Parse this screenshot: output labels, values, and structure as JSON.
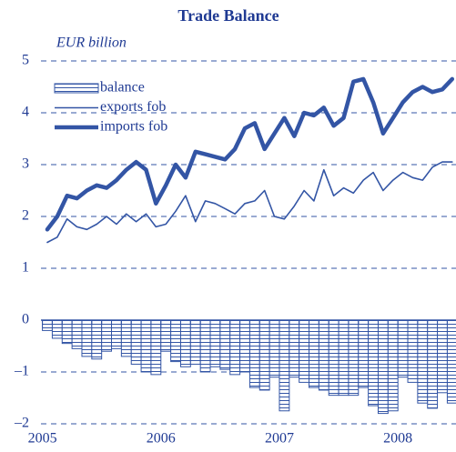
{
  "chart_data": {
    "type": "bar_line",
    "title": "Trade Balance",
    "y_label": "EUR billion",
    "categories": [
      "2005",
      null,
      null,
      null,
      null,
      null,
      null,
      null,
      null,
      null,
      null,
      null,
      "2006",
      null,
      null,
      null,
      null,
      null,
      null,
      null,
      null,
      null,
      null,
      null,
      "2007",
      null,
      null,
      null,
      null,
      null,
      null,
      null,
      null,
      null,
      null,
      null,
      "2008",
      null,
      null,
      null,
      null,
      null
    ],
    "series": [
      {
        "name": "balance",
        "type": "bar",
        "color": "#3355a5",
        "values": [
          -0.2,
          -0.35,
          -0.45,
          -0.55,
          -0.7,
          -0.75,
          -0.6,
          -0.55,
          -0.7,
          -0.85,
          -1.0,
          -1.05,
          -0.6,
          -0.8,
          -0.9,
          -0.85,
          -1.0,
          -0.9,
          -0.95,
          -1.05,
          -1.0,
          -1.3,
          -1.35,
          -1.1,
          -1.75,
          -1.1,
          -1.2,
          -1.3,
          -1.35,
          -1.45,
          -1.45,
          -1.45,
          -1.3,
          -1.65,
          -1.8,
          -1.75,
          -1.1,
          -1.2,
          -1.6,
          -1.7,
          -1.4,
          -1.6
        ]
      },
      {
        "name": "exports fob",
        "type": "line",
        "color": "#3355a5",
        "line_width": 1.6,
        "values": [
          1.5,
          1.6,
          1.95,
          1.8,
          1.75,
          1.85,
          2.0,
          1.85,
          2.05,
          1.9,
          2.05,
          1.8,
          1.85,
          2.1,
          2.4,
          1.9,
          2.3,
          2.25,
          2.15,
          2.05,
          2.25,
          2.3,
          2.5,
          2.0,
          1.95,
          2.2,
          2.5,
          2.3,
          2.9,
          2.4,
          2.55,
          2.45,
          2.7,
          2.85,
          2.5,
          2.7,
          2.85,
          2.75,
          2.7,
          2.95,
          3.05,
          3.05
        ]
      },
      {
        "name": "imports fob",
        "type": "line",
        "color": "#3355a5",
        "line_width": 4.5,
        "values": [
          1.75,
          2.0,
          2.4,
          2.35,
          2.5,
          2.6,
          2.55,
          2.7,
          2.9,
          3.05,
          2.9,
          2.25,
          2.6,
          3.0,
          2.75,
          3.25,
          3.2,
          3.15,
          3.1,
          3.3,
          3.7,
          3.8,
          3.3,
          3.6,
          3.9,
          3.55,
          4.0,
          3.95,
          4.1,
          3.75,
          3.9,
          4.6,
          4.65,
          4.2,
          3.6,
          3.9,
          4.2,
          4.4,
          4.5,
          4.4,
          4.45,
          4.65
        ]
      }
    ],
    "ylim": [
      -2,
      5
    ],
    "yticks": [
      {
        "value": -2,
        "label": "–2"
      },
      {
        "value": -1,
        "label": "–1"
      },
      0,
      1,
      2,
      3,
      4,
      5
    ],
    "grid": true,
    "legend": "upper left"
  }
}
